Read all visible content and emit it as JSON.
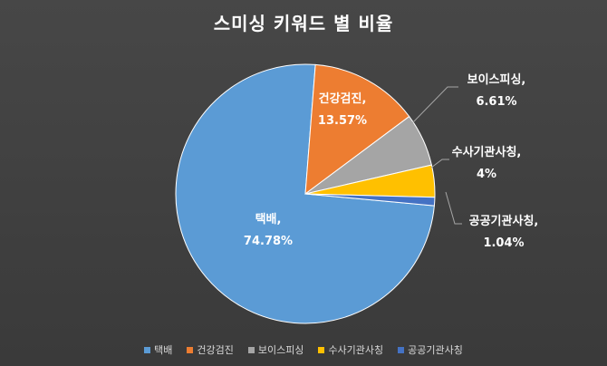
{
  "chart_data": {
    "type": "pie",
    "title": "스미싱 키워드 별 비율",
    "slices": [
      {
        "name": "택배",
        "value": 74.78,
        "label": "택배,",
        "pct_label": "74.78%",
        "color": "#5b9bd5"
      },
      {
        "name": "건강검진",
        "value": 13.57,
        "label": "건강검진,",
        "pct_label": "13.57%",
        "color": "#ed7d31"
      },
      {
        "name": "보이스피싱",
        "value": 6.61,
        "label": "보이스피싱,",
        "pct_label": "6.61%",
        "color": "#a5a5a5"
      },
      {
        "name": "수사기관사칭",
        "value": 4,
        "label": "수사기관사칭,",
        "pct_label": "4%",
        "color": "#ffc000"
      },
      {
        "name": "공공기관사칭",
        "value": 1.04,
        "label": "공공기관사칭,",
        "pct_label": "1.04%",
        "color": "#4472c4"
      }
    ],
    "legend_position": "bottom"
  }
}
